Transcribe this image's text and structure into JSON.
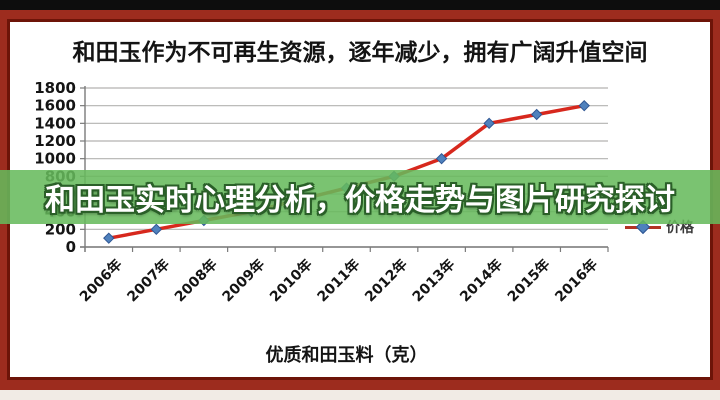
{
  "frame": {
    "top_bar_color": "#0d0d0d",
    "border_color": "#9d2c1e",
    "panel_border_color": "#6d1408",
    "bottom_strip_color": "#f1ebe5"
  },
  "banner": {
    "text": "和田玉实时心理分析，价格走势与图片研究探讨",
    "bg_color": "#66ba5c",
    "text_color": "#ffffff"
  },
  "chart": {
    "title": "和田玉作为不可再生资源，逐年减少，拥有广阔升值空间",
    "x_title": "优质和田玉料（克）",
    "legend_label": "价格"
  },
  "chart_data": {
    "type": "line",
    "title": "和田玉作为不可再生资源，逐年减少，拥有广阔升值空间",
    "xlabel": "优质和田玉料（克）",
    "ylabel": "",
    "categories": [
      "2006年",
      "2007年",
      "2008年",
      "2009年",
      "2010年",
      "2011年",
      "2012年",
      "2013年",
      "2014年",
      "2015年",
      "2016年"
    ],
    "series": [
      {
        "name": "价格",
        "values": [
          100,
          200,
          300,
          400,
          533,
          667,
          800,
          1000,
          1400,
          1500,
          1600
        ]
      }
    ],
    "ylim": [
      0,
      1800
    ],
    "ytick_interval": 200,
    "grid": true,
    "legend_position": "bottom-right",
    "x_label_rotation_deg": -45,
    "line_color": "#d7281d",
    "marker_shape": "diamond",
    "marker_color": "#4f81bd",
    "marker_edge_color": "#2f5693",
    "grid_color": "#b3b2b1",
    "axis_color": "#7a7a7a",
    "tick_label_color": "#141414"
  }
}
